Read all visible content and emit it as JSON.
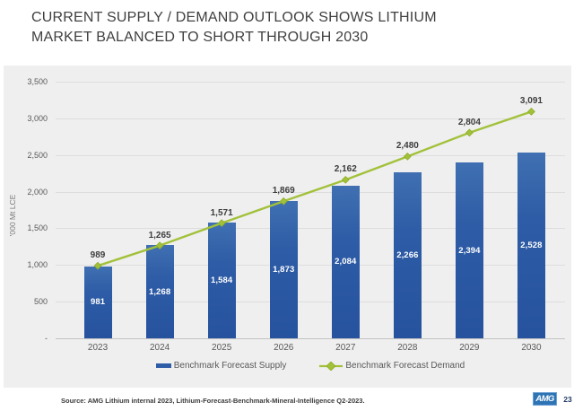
{
  "slide": {
    "title_lines": [
      "CURRENT SUPPLY / DEMAND OUTLOOK SHOWS LITHIUM",
      "MARKET BALANCED TO SHORT THROUGH 2030"
    ]
  },
  "chart_data": {
    "type": "bar",
    "title": "",
    "categories": [
      "2023",
      "2024",
      "2025",
      "2026",
      "2027",
      "2028",
      "2029",
      "2030"
    ],
    "series": [
      {
        "name": "Benchmark Forecast Supply",
        "type": "bar",
        "color": "#2e5ca6",
        "values": [
          981,
          1268,
          1584,
          1873,
          2084,
          2266,
          2394,
          2528
        ],
        "labels": [
          "981",
          "1,268",
          "1,584",
          "1,873",
          "2,084",
          "2,266",
          "2,394",
          "2,528"
        ]
      },
      {
        "name": "Benchmark Forecast Demand",
        "type": "line",
        "color": "#a2c13a",
        "marker": "diamond",
        "marker_stroke": "#8fad26",
        "values": [
          989,
          1265,
          1571,
          1869,
          2162,
          2480,
          2804,
          3091
        ],
        "labels": [
          "989",
          "1,265",
          "1,571",
          "1,869",
          "2,162",
          "2,480",
          "2,804",
          "3,091"
        ]
      }
    ],
    "xlabel": "",
    "ylabel": "'000 Mt LCE",
    "ylim": [
      0,
      3500
    ],
    "yticks": [
      {
        "value": 0,
        "label": "-"
      },
      {
        "value": 500,
        "label": "500"
      },
      {
        "value": 1000,
        "label": "1,000"
      },
      {
        "value": 1500,
        "label": "1,500"
      },
      {
        "value": 2000,
        "label": "2,000"
      },
      {
        "value": 2500,
        "label": "2,500"
      },
      {
        "value": 3000,
        "label": "3,000"
      },
      {
        "value": 3500,
        "label": "3,500"
      }
    ],
    "grid": true,
    "legend_position": "bottom",
    "plot_background": "#efefef"
  },
  "footer": {
    "source": "Source: AMG Lithium internal 2023, Lithium-Forecast-Benchmark-Mineral-Intelligence Q2-2023.",
    "logo_text": "AMG",
    "page_number": "23"
  }
}
